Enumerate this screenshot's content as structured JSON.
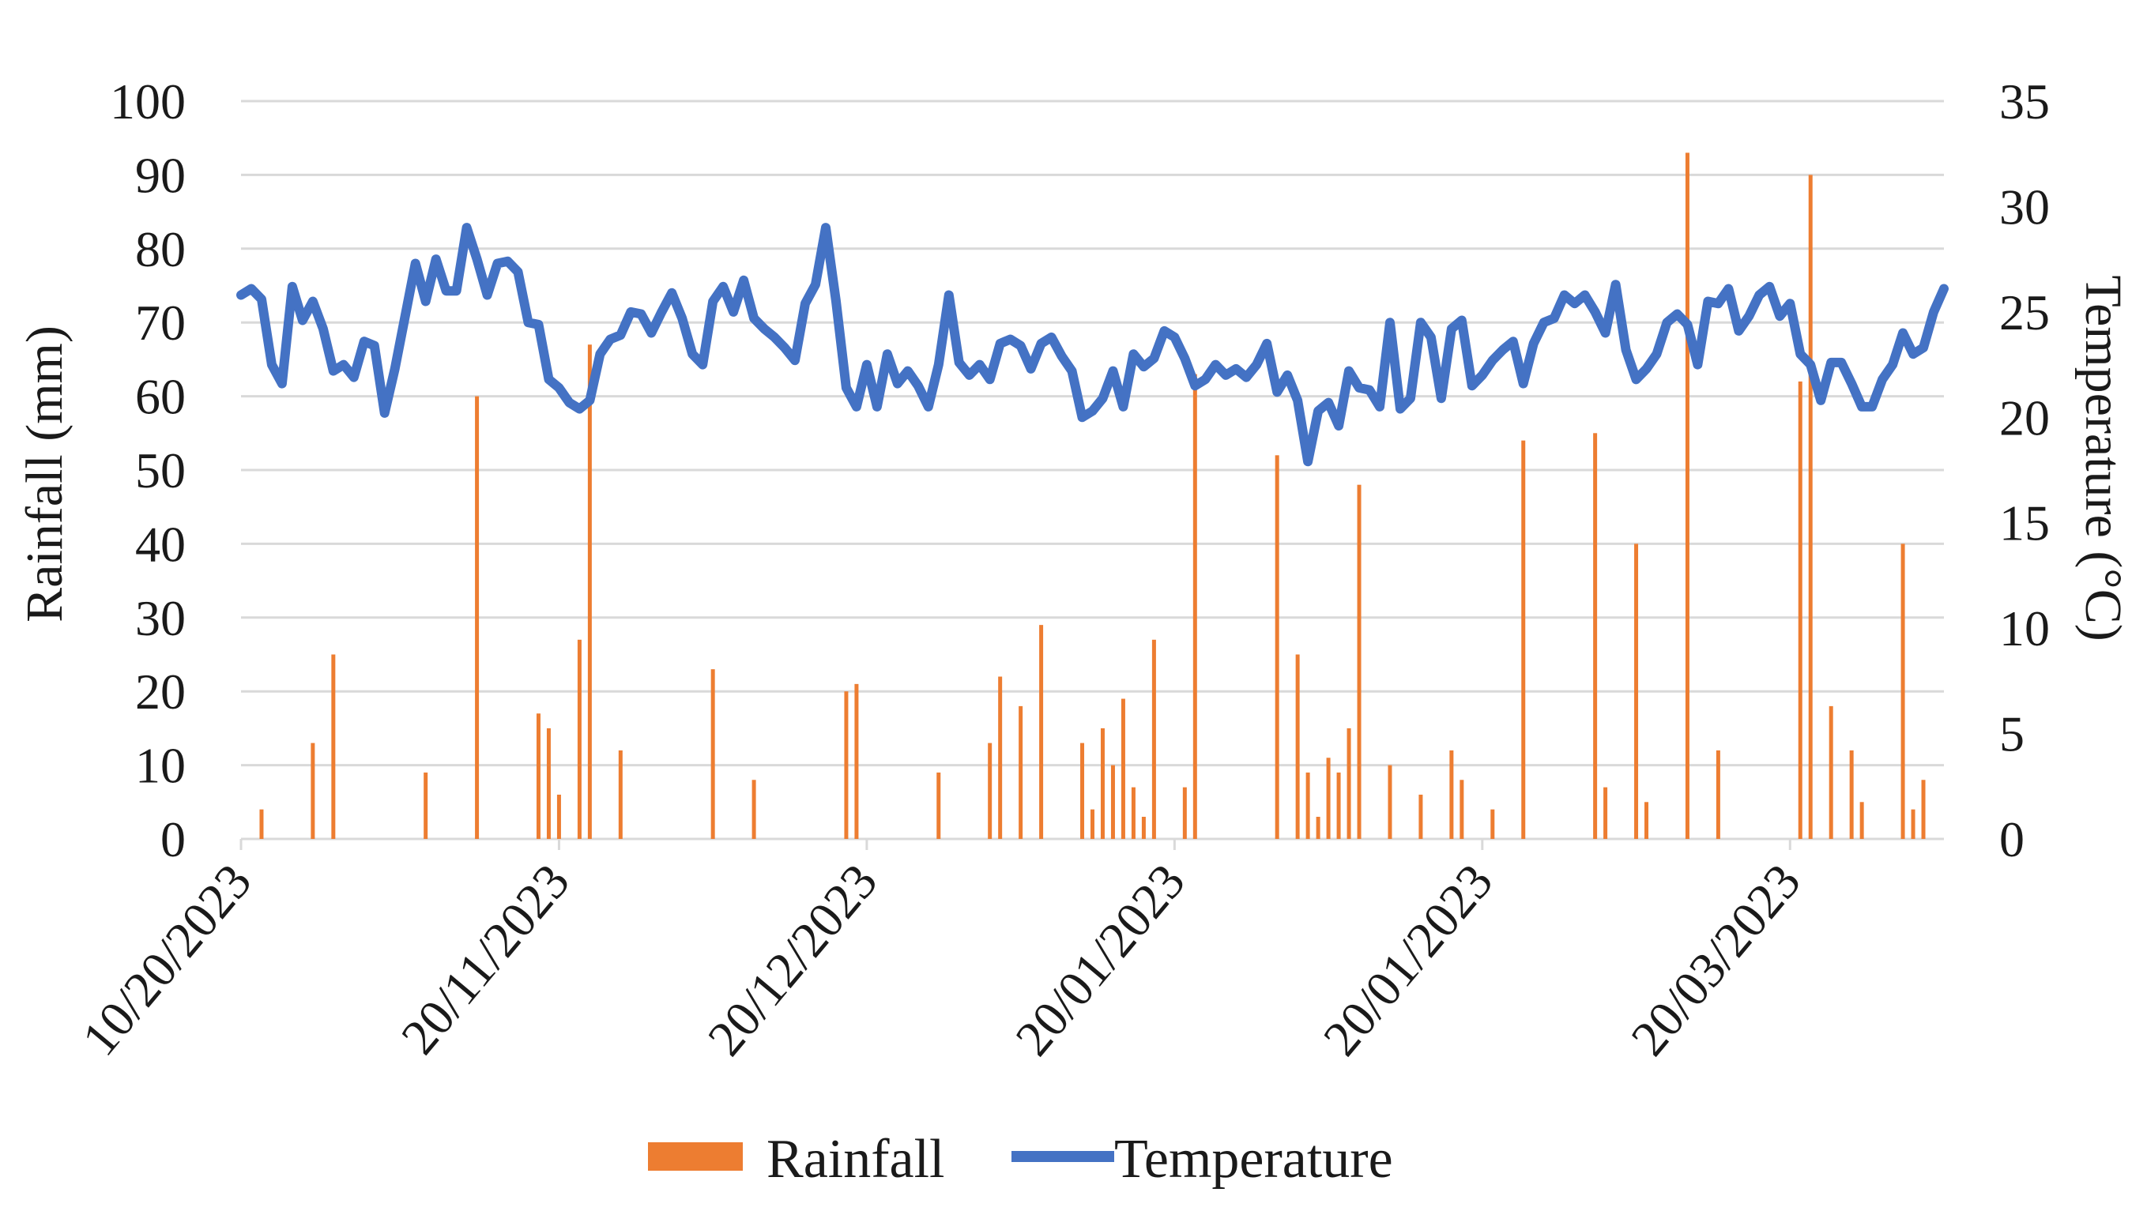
{
  "chart_data": {
    "type": "bar+line",
    "title": "",
    "categories": [
      "10/20/2023",
      "20/11/2023",
      "20/12/2023",
      "20/01/2023",
      "20/01/2023",
      "20/03/2023"
    ],
    "x_range_days": [
      0,
      166
    ],
    "category_days": [
      0,
      31,
      61,
      91,
      121,
      151
    ],
    "ylabel_left": "Rainfall (mm)",
    "ylabel_right": "Temperature (°C)",
    "ylim_left": [
      0,
      100
    ],
    "ylim_right": [
      0,
      35
    ],
    "yticks_left": [
      "0",
      "10",
      "20",
      "30",
      "40",
      "50",
      "60",
      "70",
      "80",
      "90",
      "100"
    ],
    "yticks_right": [
      "0",
      "5",
      "10",
      "15",
      "20",
      "25",
      "30",
      "35"
    ],
    "grid": true,
    "legend_position": "bottom",
    "colors": {
      "rainfall": "#ed7d31",
      "temperature": "#4472c4",
      "grid": "#d9d9d9"
    },
    "series": [
      {
        "name": "Rainfall",
        "kind": "bar",
        "axis": "left",
        "points": [
          [
            2,
            4
          ],
          [
            7,
            13
          ],
          [
            9,
            25
          ],
          [
            18,
            9
          ],
          [
            23,
            60
          ],
          [
            29,
            17
          ],
          [
            30,
            15
          ],
          [
            31,
            6
          ],
          [
            33,
            27
          ],
          [
            34,
            67
          ],
          [
            37,
            12
          ],
          [
            46,
            23
          ],
          [
            50,
            8
          ],
          [
            59,
            20
          ],
          [
            60,
            21
          ],
          [
            68,
            9
          ],
          [
            73,
            13
          ],
          [
            74,
            22
          ],
          [
            76,
            18
          ],
          [
            78,
            29
          ],
          [
            82,
            13
          ],
          [
            83,
            4
          ],
          [
            84,
            15
          ],
          [
            85,
            10
          ],
          [
            86,
            19
          ],
          [
            87,
            7
          ],
          [
            88,
            3
          ],
          [
            89,
            27
          ],
          [
            92,
            7
          ],
          [
            93,
            63
          ],
          [
            101,
            52
          ],
          [
            103,
            25
          ],
          [
            104,
            9
          ],
          [
            105,
            3
          ],
          [
            106,
            11
          ],
          [
            107,
            9
          ],
          [
            108,
            15
          ],
          [
            109,
            48
          ],
          [
            112,
            10
          ],
          [
            115,
            6
          ],
          [
            118,
            12
          ],
          [
            119,
            8
          ],
          [
            122,
            4
          ],
          [
            125,
            54
          ],
          [
            132,
            55
          ],
          [
            133,
            7
          ],
          [
            136,
            40
          ],
          [
            137,
            5
          ],
          [
            141,
            93
          ],
          [
            144,
            12
          ],
          [
            152,
            62
          ],
          [
            153,
            90
          ],
          [
            155,
            18
          ],
          [
            157,
            12
          ],
          [
            158,
            5
          ],
          [
            162,
            40
          ],
          [
            163,
            4
          ],
          [
            164,
            8
          ]
        ]
      },
      {
        "name": "Temperature",
        "kind": "line",
        "axis": "right",
        "points": [
          [
            0,
            25.8
          ],
          [
            1,
            26.1
          ],
          [
            2,
            25.6
          ],
          [
            3,
            22.5
          ],
          [
            4,
            21.6
          ],
          [
            5,
            26.2
          ],
          [
            6,
            24.6
          ],
          [
            7,
            25.5
          ],
          [
            8,
            24.2
          ],
          [
            9,
            22.2
          ],
          [
            10,
            22.5
          ],
          [
            11,
            21.9
          ],
          [
            12,
            23.6
          ],
          [
            13,
            23.4
          ],
          [
            14,
            20.2
          ],
          [
            15,
            22.3
          ],
          [
            16,
            24.8
          ],
          [
            17,
            27.3
          ],
          [
            18,
            25.5
          ],
          [
            19,
            27.5
          ],
          [
            20,
            26
          ],
          [
            21,
            26
          ],
          [
            22,
            29
          ],
          [
            23,
            27.5
          ],
          [
            24,
            25.8
          ],
          [
            25,
            27.3
          ],
          [
            26,
            27.4
          ],
          [
            27,
            26.9
          ],
          [
            28,
            24.5
          ],
          [
            29,
            24.4
          ],
          [
            30,
            21.8
          ],
          [
            31,
            21.4
          ],
          [
            32,
            20.7
          ],
          [
            33,
            20.4
          ],
          [
            34,
            20.8
          ],
          [
            35,
            23
          ],
          [
            36,
            23.7
          ],
          [
            37,
            23.9
          ],
          [
            38,
            25
          ],
          [
            39,
            24.9
          ],
          [
            40,
            24
          ],
          [
            41,
            25
          ],
          [
            42,
            25.9
          ],
          [
            43,
            24.7
          ],
          [
            44,
            23
          ],
          [
            45,
            22.5
          ],
          [
            46,
            25.5
          ],
          [
            47,
            26.2
          ],
          [
            48,
            25
          ],
          [
            49,
            26.5
          ],
          [
            50,
            24.7
          ],
          [
            51,
            24.2
          ],
          [
            52,
            23.8
          ],
          [
            53,
            23.3
          ],
          [
            54,
            22.7
          ],
          [
            55,
            25.4
          ],
          [
            56,
            26.3
          ],
          [
            57,
            29
          ],
          [
            58,
            25.5
          ],
          [
            59,
            21.4
          ],
          [
            60,
            20.5
          ],
          [
            61,
            22.5
          ],
          [
            62,
            20.5
          ],
          [
            63,
            23
          ],
          [
            64,
            21.6
          ],
          [
            65,
            22.2
          ],
          [
            66,
            21.5
          ],
          [
            67,
            20.5
          ],
          [
            68,
            22.5
          ],
          [
            69,
            25.8
          ],
          [
            70,
            22.6
          ],
          [
            71,
            22
          ],
          [
            72,
            22.5
          ],
          [
            73,
            21.8
          ],
          [
            74,
            23.5
          ],
          [
            75,
            23.7
          ],
          [
            76,
            23.4
          ],
          [
            77,
            22.3
          ],
          [
            78,
            23.5
          ],
          [
            79,
            23.8
          ],
          [
            80,
            22.9
          ],
          [
            81,
            22.2
          ],
          [
            82,
            20
          ],
          [
            83,
            20.3
          ],
          [
            84,
            20.9
          ],
          [
            85,
            22.2
          ],
          [
            86,
            20.5
          ],
          [
            87,
            23
          ],
          [
            88,
            22.4
          ],
          [
            89,
            22.8
          ],
          [
            90,
            24.1
          ],
          [
            91,
            23.8
          ],
          [
            92,
            22.8
          ],
          [
            93,
            21.5
          ],
          [
            94,
            21.8
          ],
          [
            95,
            22.5
          ],
          [
            96,
            22
          ],
          [
            97,
            22.3
          ],
          [
            98,
            21.9
          ],
          [
            99,
            22.5
          ],
          [
            100,
            23.5
          ],
          [
            101,
            21.2
          ],
          [
            102,
            22
          ],
          [
            103,
            20.8
          ],
          [
            104,
            17.9
          ],
          [
            105,
            20.3
          ],
          [
            106,
            20.7
          ],
          [
            107,
            19.6
          ],
          [
            108,
            22.2
          ],
          [
            109,
            21.4
          ],
          [
            110,
            21.3
          ],
          [
            111,
            20.5
          ],
          [
            112,
            24.5
          ],
          [
            113,
            20.4
          ],
          [
            114,
            20.9
          ],
          [
            115,
            24.5
          ],
          [
            116,
            23.8
          ],
          [
            117,
            20.9
          ],
          [
            118,
            24.2
          ],
          [
            119,
            24.6
          ],
          [
            120,
            21.5
          ],
          [
            121,
            22
          ],
          [
            122,
            22.7
          ],
          [
            123,
            23.2
          ],
          [
            124,
            23.6
          ],
          [
            125,
            21.6
          ],
          [
            126,
            23.5
          ],
          [
            127,
            24.5
          ],
          [
            128,
            24.7
          ],
          [
            129,
            25.8
          ],
          [
            130,
            25.4
          ],
          [
            131,
            25.8
          ],
          [
            132,
            25
          ],
          [
            133,
            24
          ],
          [
            134,
            26.3
          ],
          [
            135,
            23.2
          ],
          [
            136,
            21.8
          ],
          [
            137,
            22.3
          ],
          [
            138,
            23
          ],
          [
            139,
            24.5
          ],
          [
            140,
            24.9
          ],
          [
            141,
            24.4
          ],
          [
            142,
            22.5
          ],
          [
            143,
            25.5
          ],
          [
            144,
            25.4
          ],
          [
            145,
            26.1
          ],
          [
            146,
            24.1
          ],
          [
            147,
            24.8
          ],
          [
            148,
            25.8
          ],
          [
            149,
            26.2
          ],
          [
            150,
            24.8
          ],
          [
            151,
            25.4
          ],
          [
            152,
            23
          ],
          [
            153,
            22.5
          ],
          [
            154,
            20.8
          ],
          [
            155,
            22.6
          ],
          [
            156,
            22.6
          ],
          [
            157,
            21.6
          ],
          [
            158,
            20.5
          ],
          [
            159,
            20.5
          ],
          [
            160,
            21.8
          ],
          [
            161,
            22.5
          ],
          [
            162,
            24
          ],
          [
            163,
            23
          ],
          [
            164,
            23.3
          ],
          [
            165,
            25
          ],
          [
            166,
            26.1
          ]
        ]
      }
    ]
  }
}
